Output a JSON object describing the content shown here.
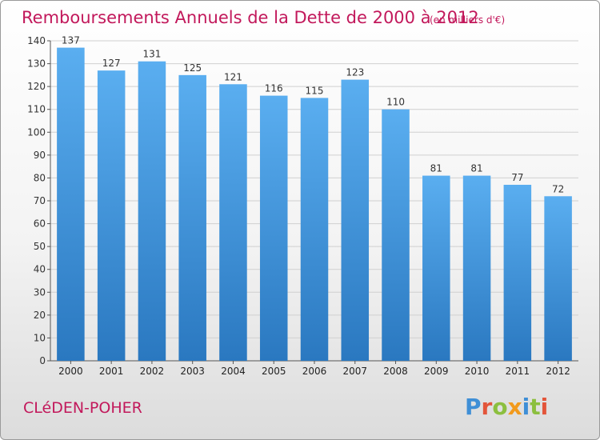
{
  "chart_data": {
    "type": "bar",
    "title": "Remboursements Annuels de la Dette de 2000 à 2012",
    "subtitle": "(en milliers d'€)",
    "categories": [
      "2000",
      "2001",
      "2002",
      "2003",
      "2004",
      "2005",
      "2006",
      "2007",
      "2008",
      "2009",
      "2010",
      "2011",
      "2012"
    ],
    "values": [
      137,
      127,
      131,
      125,
      121,
      116,
      115,
      123,
      110,
      81,
      81,
      77,
      72
    ],
    "yticks": [
      0,
      10,
      20,
      30,
      40,
      50,
      60,
      70,
      80,
      90,
      100,
      110,
      120,
      130,
      140
    ],
    "ylim": [
      0,
      140
    ],
    "grid": true,
    "bar_color": "#4a9fe0"
  },
  "footer": {
    "town": "CLéDEN-POHER",
    "logo_letters": [
      "P",
      "r",
      "o",
      "x",
      "i",
      "t",
      "i"
    ],
    "logo_colors": [
      "#3f8fd6",
      "#e3553a",
      "#8cbf3f",
      "#f29a1c",
      "#3f8fd6",
      "#8cbf3f",
      "#e3553a"
    ]
  }
}
